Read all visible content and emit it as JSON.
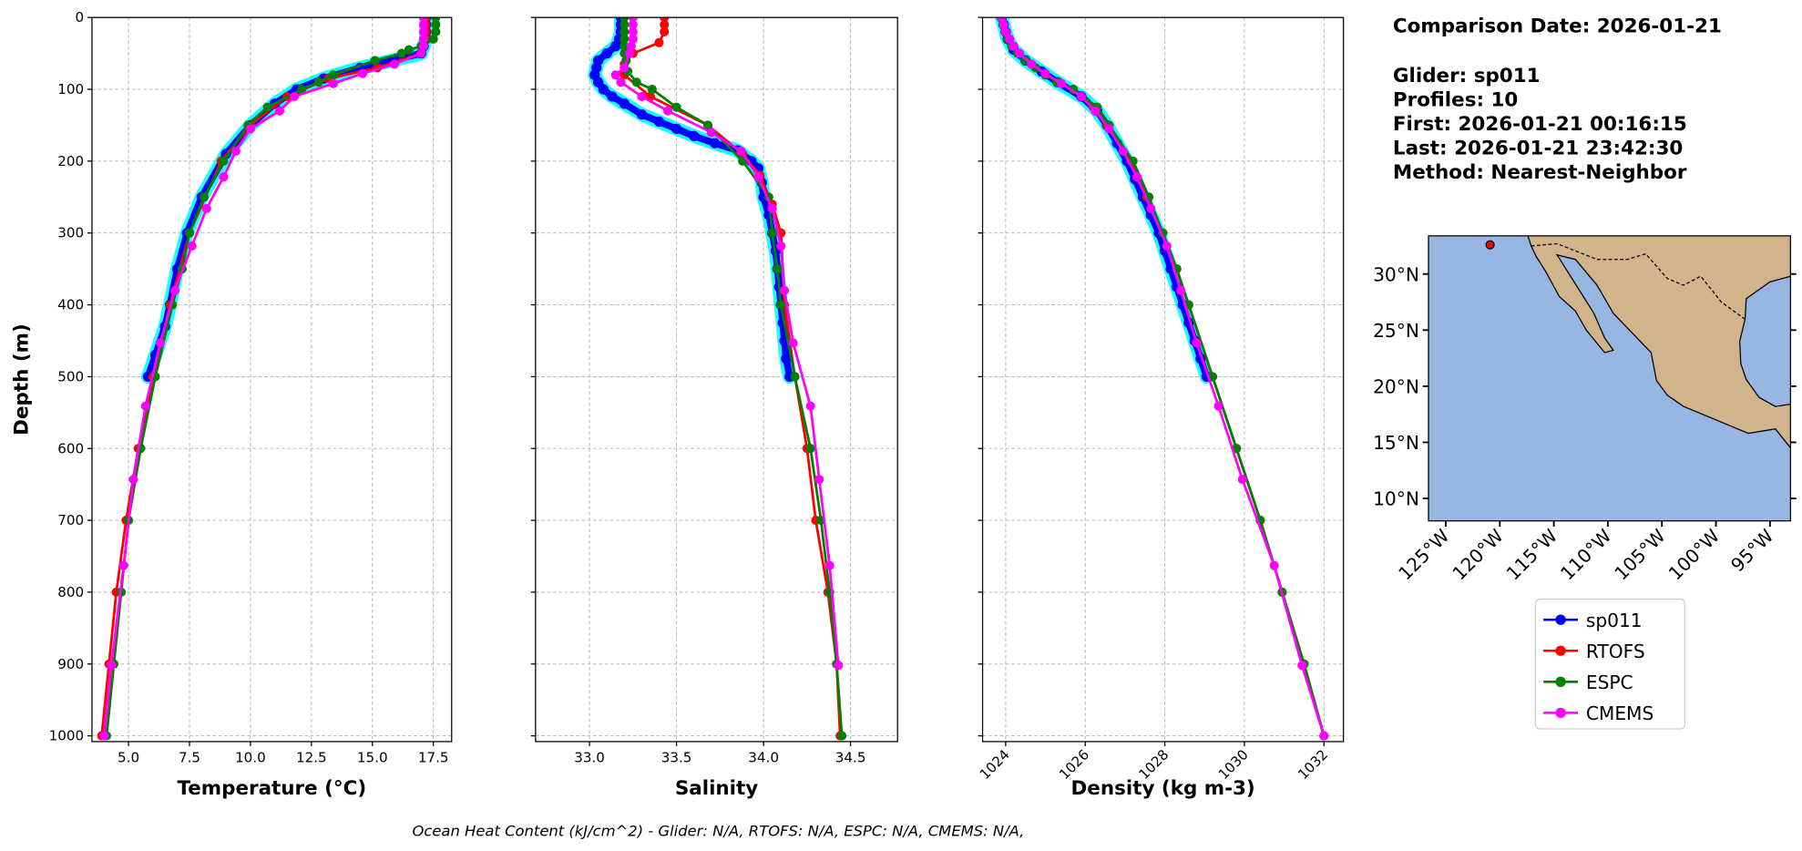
{
  "info": {
    "comparison_date": "Comparison Date: 2026-01-21",
    "glider": "Glider: sp011",
    "profiles": "Profiles: 10",
    "first": "First: 2026-01-21 00:16:15",
    "last": "Last: 2026-01-21 23:42:30",
    "method": "Method: Nearest-Neighbor"
  },
  "footer": "Ocean Heat Content (kJ/cm^2) - Glider: N/A,  RTOFS: N/A,  ESPC: N/A,  CMEMS: N/A,",
  "legend": [
    {
      "label": "sp011",
      "color": "#0000ff"
    },
    {
      "label": "RTOFS",
      "color": "#ff0000"
    },
    {
      "label": "ESPC",
      "color": "#008000"
    },
    {
      "label": "CMEMS",
      "color": "#ff00ff"
    }
  ],
  "glider_profile_halo_color": "#00ffff",
  "chart_data": [
    {
      "type": "line",
      "xlabel": "Temperature (°C)",
      "ylabel": "Depth (m)",
      "xlim": [
        3.5,
        18.25
      ],
      "ylim": [
        1008,
        0
      ],
      "xticks": [
        5.0,
        7.5,
        10.0,
        12.5,
        15.0,
        17.5
      ],
      "xtick_labels": [
        "5.0",
        "7.5",
        "10.0",
        "12.5",
        "15.0",
        "17.5"
      ],
      "yticks": [
        0,
        100,
        200,
        300,
        400,
        500,
        600,
        700,
        800,
        900,
        1000
      ],
      "ytick_labels": [
        "0",
        "100",
        "200",
        "300",
        "400",
        "500",
        "600",
        "700",
        "800",
        "900",
        "1000"
      ],
      "grid": true,
      "series": [
        {
          "name": "sp011",
          "depth": [
            0,
            10,
            20,
            30,
            40,
            50,
            60,
            70,
            85,
            100,
            120,
            150,
            190,
            250,
            300,
            350,
            400,
            430,
            470,
            500
          ],
          "values": [
            17.2,
            17.2,
            17.2,
            17.2,
            17.1,
            17.0,
            15.8,
            14.5,
            13.0,
            11.9,
            11.0,
            10.0,
            9.0,
            8.0,
            7.4,
            7.0,
            6.7,
            6.5,
            6.1,
            5.8
          ]
        },
        {
          "name": "RTOFS",
          "depth": [
            0,
            10,
            20,
            30,
            40,
            50,
            70,
            85,
            110,
            150,
            200,
            300,
            400,
            500,
            600,
            700,
            800,
            900,
            1000
          ],
          "values": [
            17.2,
            17.2,
            17.2,
            17.2,
            17.1,
            17.0,
            15.2,
            13.2,
            11.5,
            10.0,
            8.8,
            7.5,
            6.7,
            6.0,
            5.4,
            4.9,
            4.5,
            4.2,
            3.9
          ]
        },
        {
          "name": "ESPC",
          "depth": [
            0,
            10,
            20,
            30,
            40,
            45,
            50,
            60,
            80,
            90,
            100,
            125,
            150,
            200,
            250,
            300,
            350,
            400,
            500,
            600,
            700,
            800,
            900,
            1000
          ],
          "values": [
            17.6,
            17.6,
            17.6,
            17.5,
            17.0,
            16.5,
            16.2,
            15.1,
            13.4,
            12.8,
            12.1,
            10.7,
            9.9,
            8.9,
            8.1,
            7.5,
            7.2,
            6.8,
            6.1,
            5.5,
            5.0,
            4.7,
            4.4,
            4.1
          ]
        },
        {
          "name": "CMEMS",
          "depth": [
            0,
            10,
            20,
            30,
            40,
            50,
            65,
            78,
            92,
            110,
            130,
            155,
            186,
            222,
            266,
            318,
            380,
            453,
            541,
            643,
            763,
            902,
            1000
          ],
          "values": [
            17.1,
            17.1,
            17.1,
            17.1,
            17.1,
            17.0,
            15.9,
            14.6,
            13.4,
            11.8,
            11.2,
            10.0,
            9.4,
            8.9,
            8.2,
            7.6,
            6.9,
            6.3,
            5.7,
            5.2,
            4.8,
            4.3,
            4.0
          ]
        }
      ]
    },
    {
      "type": "line",
      "xlabel": "Salinity",
      "ylabel": "",
      "xlim": [
        32.69,
        34.77
      ],
      "ylim": [
        1008,
        0
      ],
      "xticks": [
        33.0,
        33.5,
        34.0,
        34.5
      ],
      "xtick_labels": [
        "33.0",
        "33.5",
        "34.0",
        "34.5"
      ],
      "yticks": [
        0,
        100,
        200,
        300,
        400,
        500,
        600,
        700,
        800,
        900,
        1000
      ],
      "grid": true,
      "series": [
        {
          "name": "sp011",
          "depth": [
            0,
            10,
            20,
            30,
            40,
            50,
            60,
            70,
            80,
            90,
            100,
            110,
            120,
            135,
            145,
            155,
            165,
            175,
            185,
            200,
            210,
            230,
            250,
            275,
            300,
            325,
            350,
            375,
            400,
            425,
            450,
            475,
            500
          ],
          "values": [
            33.18,
            33.18,
            33.18,
            33.17,
            33.15,
            33.1,
            33.05,
            33.04,
            33.03,
            33.05,
            33.08,
            33.13,
            33.2,
            33.3,
            33.4,
            33.5,
            33.6,
            33.72,
            33.85,
            33.93,
            33.97,
            33.99,
            34.0,
            34.03,
            34.05,
            34.07,
            34.08,
            34.09,
            34.1,
            34.11,
            34.12,
            34.13,
            34.15
          ]
        },
        {
          "name": "RTOFS",
          "depth": [
            0,
            10,
            20,
            35,
            50,
            65,
            80,
            110,
            150,
            190,
            220,
            260,
            300,
            400,
            500,
            600,
            700,
            800,
            900,
            1000
          ],
          "values": [
            33.43,
            33.43,
            33.43,
            33.4,
            33.25,
            33.2,
            33.2,
            33.35,
            33.68,
            33.88,
            33.98,
            34.05,
            34.1,
            34.12,
            34.18,
            34.25,
            34.3,
            34.37,
            34.42,
            34.44
          ]
        },
        {
          "name": "ESPC",
          "depth": [
            0,
            10,
            20,
            30,
            40,
            50,
            60,
            75,
            90,
            100,
            125,
            150,
            200,
            250,
            300,
            350,
            400,
            500,
            600,
            700,
            800,
            900,
            1000
          ],
          "values": [
            33.2,
            33.2,
            33.2,
            33.2,
            33.2,
            33.2,
            33.21,
            33.22,
            33.27,
            33.36,
            33.5,
            33.68,
            33.88,
            34.03,
            34.05,
            34.08,
            34.1,
            34.18,
            34.27,
            34.33,
            34.38,
            34.42,
            34.45
          ]
        },
        {
          "name": "CMEMS",
          "depth": [
            0,
            10,
            20,
            30,
            40,
            50,
            70,
            80,
            90,
            110,
            130,
            160,
            186,
            222,
            266,
            318,
            380,
            453,
            541,
            643,
            763,
            902
          ],
          "values": [
            33.25,
            33.25,
            33.25,
            33.25,
            33.24,
            33.23,
            33.2,
            33.15,
            33.18,
            33.3,
            33.45,
            33.7,
            33.87,
            33.97,
            34.05,
            34.1,
            34.12,
            34.17,
            34.27,
            34.32,
            34.38,
            34.43
          ]
        }
      ]
    },
    {
      "type": "line",
      "xlabel": "Density (kg m-3)",
      "ylabel": "",
      "xlim": [
        1023.42,
        1032.49
      ],
      "ylim": [
        1008,
        0
      ],
      "xticks": [
        1024,
        1026,
        1028,
        1030,
        1032
      ],
      "xtick_labels": [
        "1024",
        "1026",
        "1028",
        "1030",
        "1032"
      ],
      "yticks": [
        0,
        100,
        200,
        300,
        400,
        500,
        600,
        700,
        800,
        900,
        1000
      ],
      "grid": true,
      "series": [
        {
          "name": "sp011",
          "depth": [
            0,
            10,
            20,
            30,
            45,
            60,
            75,
            90,
            110,
            130,
            150,
            175,
            200,
            225,
            250,
            275,
            300,
            325,
            350,
            375,
            400,
            425,
            450,
            475,
            500
          ],
          "values": [
            1023.9,
            1023.95,
            1024.0,
            1024.05,
            1024.2,
            1024.5,
            1024.9,
            1025.3,
            1025.9,
            1026.3,
            1026.55,
            1026.8,
            1027.05,
            1027.25,
            1027.45,
            1027.65,
            1027.85,
            1028.0,
            1028.15,
            1028.3,
            1028.45,
            1028.6,
            1028.75,
            1028.9,
            1029.05
          ]
        },
        {
          "name": "RTOFS",
          "depth": [
            0,
            10,
            20,
            30,
            40,
            50,
            65,
            80,
            100,
            125,
            150,
            200,
            250,
            300,
            350,
            400,
            500,
            600,
            700,
            800,
            900,
            1000
          ],
          "values": [
            1023.9,
            1023.95,
            1024.0,
            1024.1,
            1024.2,
            1024.35,
            1024.65,
            1025.0,
            1025.7,
            1026.2,
            1026.55,
            1027.15,
            1027.55,
            1027.95,
            1028.3,
            1028.6,
            1029.2,
            1029.8,
            1030.4,
            1030.95,
            1031.5,
            1032.0
          ]
        },
        {
          "name": "ESPC",
          "depth": [
            0,
            10,
            20,
            30,
            40,
            50,
            60,
            70,
            80,
            90,
            100,
            125,
            150,
            200,
            250,
            300,
            350,
            400,
            500,
            600,
            700,
            800,
            900,
            1000
          ],
          "values": [
            1023.88,
            1023.93,
            1023.98,
            1024.05,
            1024.15,
            1024.3,
            1024.5,
            1024.75,
            1025.0,
            1025.3,
            1025.7,
            1026.3,
            1026.6,
            1027.2,
            1027.6,
            1027.95,
            1028.3,
            1028.6,
            1029.2,
            1029.8,
            1030.4,
            1030.95,
            1031.5,
            1032.0
          ]
        },
        {
          "name": "CMEMS",
          "depth": [
            0,
            10,
            20,
            30,
            40,
            50,
            65,
            78,
            92,
            110,
            130,
            155,
            186,
            222,
            266,
            318,
            380,
            453,
            541,
            643,
            763,
            902,
            1000
          ],
          "values": [
            1023.9,
            1023.95,
            1024.0,
            1024.1,
            1024.2,
            1024.35,
            1024.65,
            1025.0,
            1025.4,
            1025.9,
            1026.25,
            1026.6,
            1026.95,
            1027.3,
            1027.65,
            1028.05,
            1028.4,
            1028.8,
            1029.35,
            1029.95,
            1030.75,
            1031.45,
            1032.0
          ]
        }
      ]
    },
    {
      "type": "map",
      "lon_range": [
        -126.6,
        -93.1
      ],
      "lat_range": [
        8.0,
        33.4
      ],
      "lon_ticks": [
        -125,
        -120,
        -115,
        -110,
        -105,
        -100,
        -95
      ],
      "lon_tick_labels": [
        "125°W",
        "120°W",
        "115°W",
        "110°W",
        "105°W",
        "100°W",
        "95°W"
      ],
      "lat_ticks": [
        10,
        15,
        20,
        25,
        30
      ],
      "lat_tick_labels": [
        "10°N",
        "15°N",
        "20°N",
        "25°N",
        "30°N"
      ],
      "ocean_color": "#97b6e1",
      "land_color": "#d2b48c",
      "glider_location": {
        "lon": -120.9,
        "lat": 32.6,
        "color": "#ff0000"
      }
    }
  ]
}
